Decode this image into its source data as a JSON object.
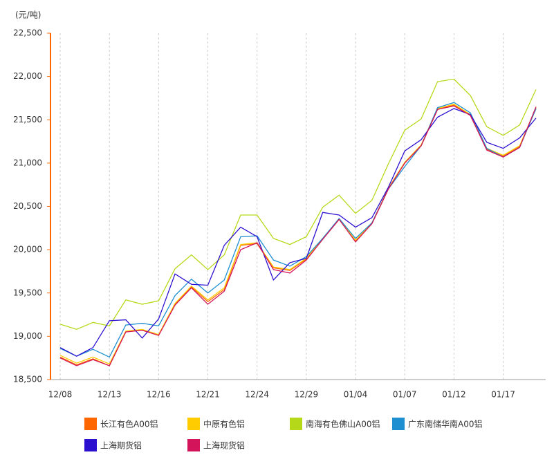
{
  "chart_data": {
    "type": "line",
    "y_unit": "(元/吨)",
    "categories": [
      "12/08",
      null,
      null,
      "12/13",
      null,
      null,
      "12/16",
      null,
      null,
      "12/21",
      null,
      null,
      "12/24",
      null,
      null,
      "12/29",
      null,
      null,
      "01/04",
      null,
      null,
      "01/07",
      null,
      null,
      "01/12",
      null,
      null,
      "01/17",
      null,
      null
    ],
    "ylim": [
      18500,
      22500
    ],
    "yticks": [
      {
        "value": 18500,
        "label": "18,500"
      },
      {
        "value": 19000,
        "label": "19,000"
      },
      {
        "value": 19500,
        "label": "19,500"
      },
      {
        "value": 20000,
        "label": "20,000"
      },
      {
        "value": 20500,
        "label": "20,500"
      },
      {
        "value": 21000,
        "label": "21,000"
      },
      {
        "value": 21500,
        "label": "21,500"
      },
      {
        "value": 22000,
        "label": "22,000"
      },
      {
        "value": 22500,
        "label": "22,500"
      }
    ],
    "series": [
      {
        "name": "长江有色A00铝",
        "color": "#ff6600",
        "values": [
          18760,
          18670,
          18740,
          18660,
          19050,
          19070,
          19010,
          19370,
          19570,
          19400,
          19540,
          20050,
          20070,
          19790,
          19760,
          19890,
          20120,
          20350,
          20100,
          20300,
          20700,
          21000,
          21200,
          21620,
          21670,
          21550,
          21160,
          21080,
          21190,
          21630
        ]
      },
      {
        "name": "中原有色铝",
        "color": "#ffcc00",
        "values": [
          18780,
          18690,
          18760,
          18680,
          19060,
          19080,
          19020,
          19380,
          19580,
          19420,
          19560,
          20060,
          20080,
          19800,
          19770,
          19900,
          20130,
          20350,
          20110,
          20310,
          20710,
          21010,
          21210,
          21630,
          21680,
          21560,
          21170,
          21090,
          21200,
          21640
        ]
      },
      {
        "name": "南海有色佛山A00铝",
        "color": "#b5d918",
        "values": [
          19140,
          19080,
          19160,
          19120,
          19420,
          19370,
          19410,
          19780,
          19940,
          19770,
          19940,
          20400,
          20400,
          20130,
          20060,
          20150,
          20490,
          20630,
          20420,
          20570,
          20990,
          21380,
          21510,
          21940,
          21970,
          21780,
          21420,
          21320,
          21440,
          21850
        ]
      },
      {
        "name": "广东南储华南A00铝",
        "color": "#1e8fd0",
        "values": [
          18860,
          18770,
          18850,
          18760,
          19130,
          19150,
          19120,
          19470,
          19660,
          19500,
          19650,
          20150,
          20160,
          19880,
          19810,
          19920,
          20130,
          20360,
          20130,
          20310,
          20700,
          20960,
          21200,
          21640,
          21700,
          21580,
          21170,
          21070,
          21180,
          21630
        ]
      },
      {
        "name": "上海期货铝",
        "color": "#2b10d0",
        "values": [
          18870,
          18770,
          18870,
          19180,
          19190,
          18980,
          19200,
          19720,
          19600,
          19590,
          20050,
          20260,
          20150,
          19650,
          19850,
          19900,
          20430,
          20400,
          20260,
          20370,
          20720,
          21140,
          21270,
          21530,
          21630,
          21560,
          21240,
          21170,
          21290,
          21520
        ]
      },
      {
        "name": "上海现货铝",
        "color": "#d4145a",
        "values": [
          18750,
          18660,
          18730,
          18660,
          19050,
          19070,
          19010,
          19360,
          19560,
          19370,
          19520,
          20000,
          20080,
          19770,
          19730,
          19880,
          20120,
          20350,
          20090,
          20300,
          20700,
          21000,
          21200,
          21620,
          21660,
          21550,
          21150,
          21070,
          21180,
          21650
        ]
      }
    ]
  }
}
